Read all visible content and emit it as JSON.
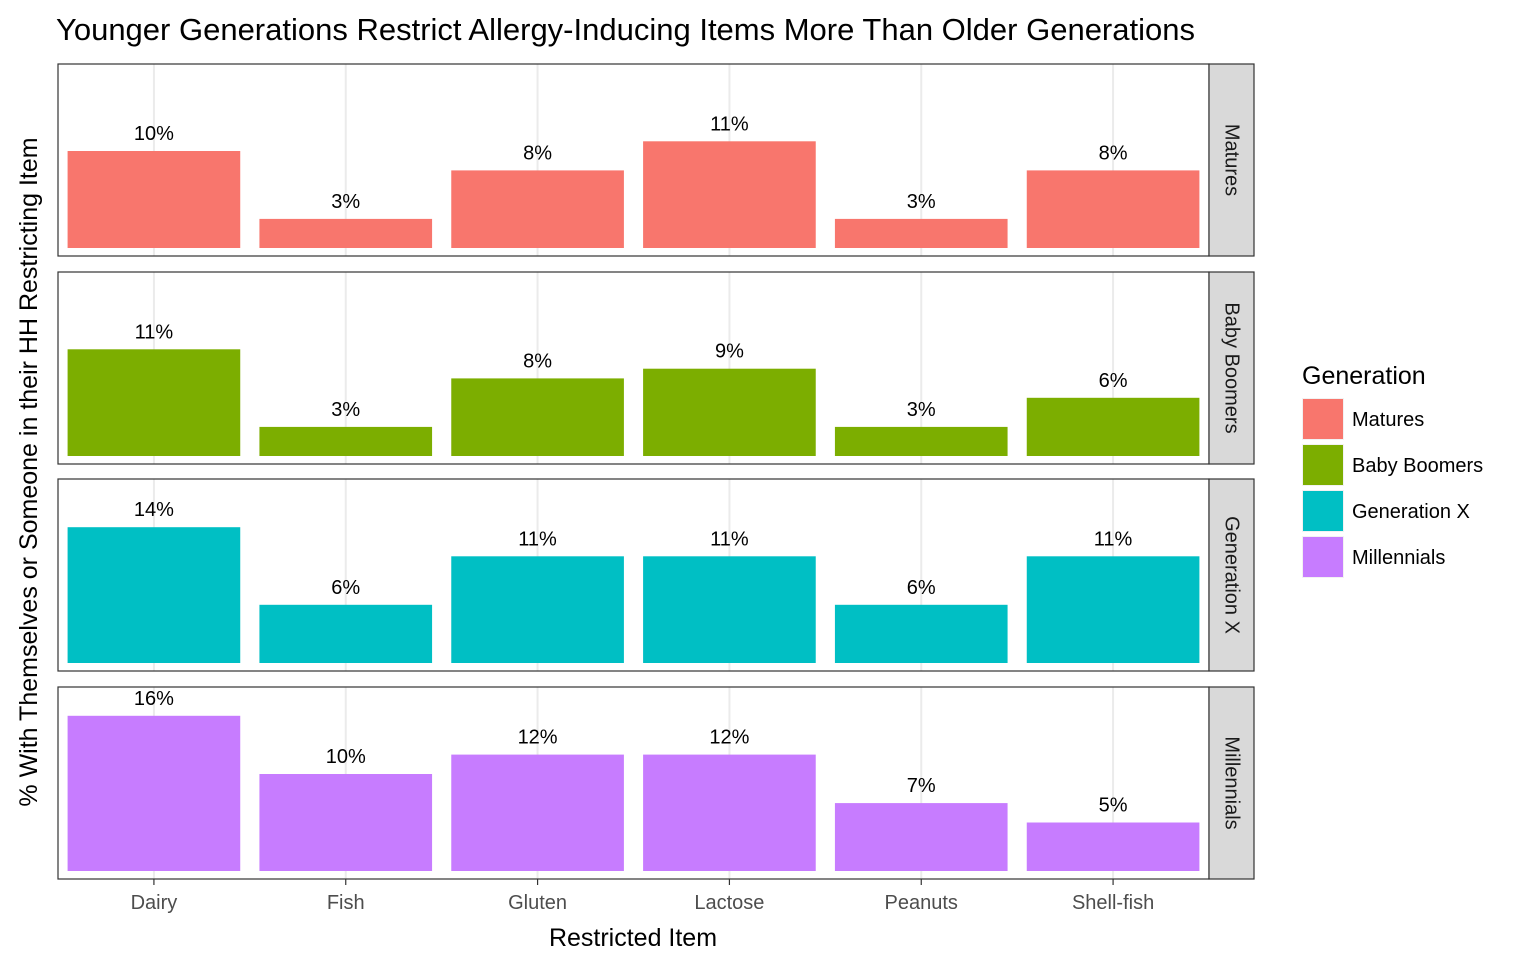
{
  "chart_data": {
    "type": "bar",
    "title": "Younger Generations Restrict Allergy-Inducing Items More Than Older Generations",
    "xlabel": "Restricted Item",
    "ylabel": "% With Themselves or Someone in their HH Restricting Item",
    "categories": [
      "Dairy",
      "Fish",
      "Gluten",
      "Lactose",
      "Peanuts",
      "Shell-fish"
    ],
    "ylim": [
      0,
      17
    ],
    "grid": true,
    "facet": "rows",
    "legend": {
      "title": "Generation",
      "placement": "right",
      "entries": [
        "Matures",
        "Baby Boomers",
        "Generation X",
        "Millennials"
      ]
    },
    "series": [
      {
        "name": "Matures",
        "color": "#F8766D",
        "values": [
          10,
          3,
          8,
          11,
          3,
          8
        ],
        "labels": [
          "10%",
          "3%",
          "8%",
          "11%",
          "3%",
          "8%"
        ]
      },
      {
        "name": "Baby Boomers",
        "color": "#7CAE00",
        "values": [
          11,
          3,
          8,
          9,
          3,
          6
        ],
        "labels": [
          "11%",
          "3%",
          "8%",
          "9%",
          "3%",
          "6%"
        ]
      },
      {
        "name": "Generation X",
        "color": "#00BFC4",
        "values": [
          14,
          6,
          11,
          11,
          6,
          11
        ],
        "labels": [
          "14%",
          "6%",
          "11%",
          "11%",
          "6%",
          "11%"
        ]
      },
      {
        "name": "Millennials",
        "color": "#C77CFF",
        "values": [
          16,
          10,
          12,
          12,
          7,
          5
        ],
        "labels": [
          "16%",
          "10%",
          "12%",
          "12%",
          "7%",
          "5%"
        ]
      }
    ]
  }
}
